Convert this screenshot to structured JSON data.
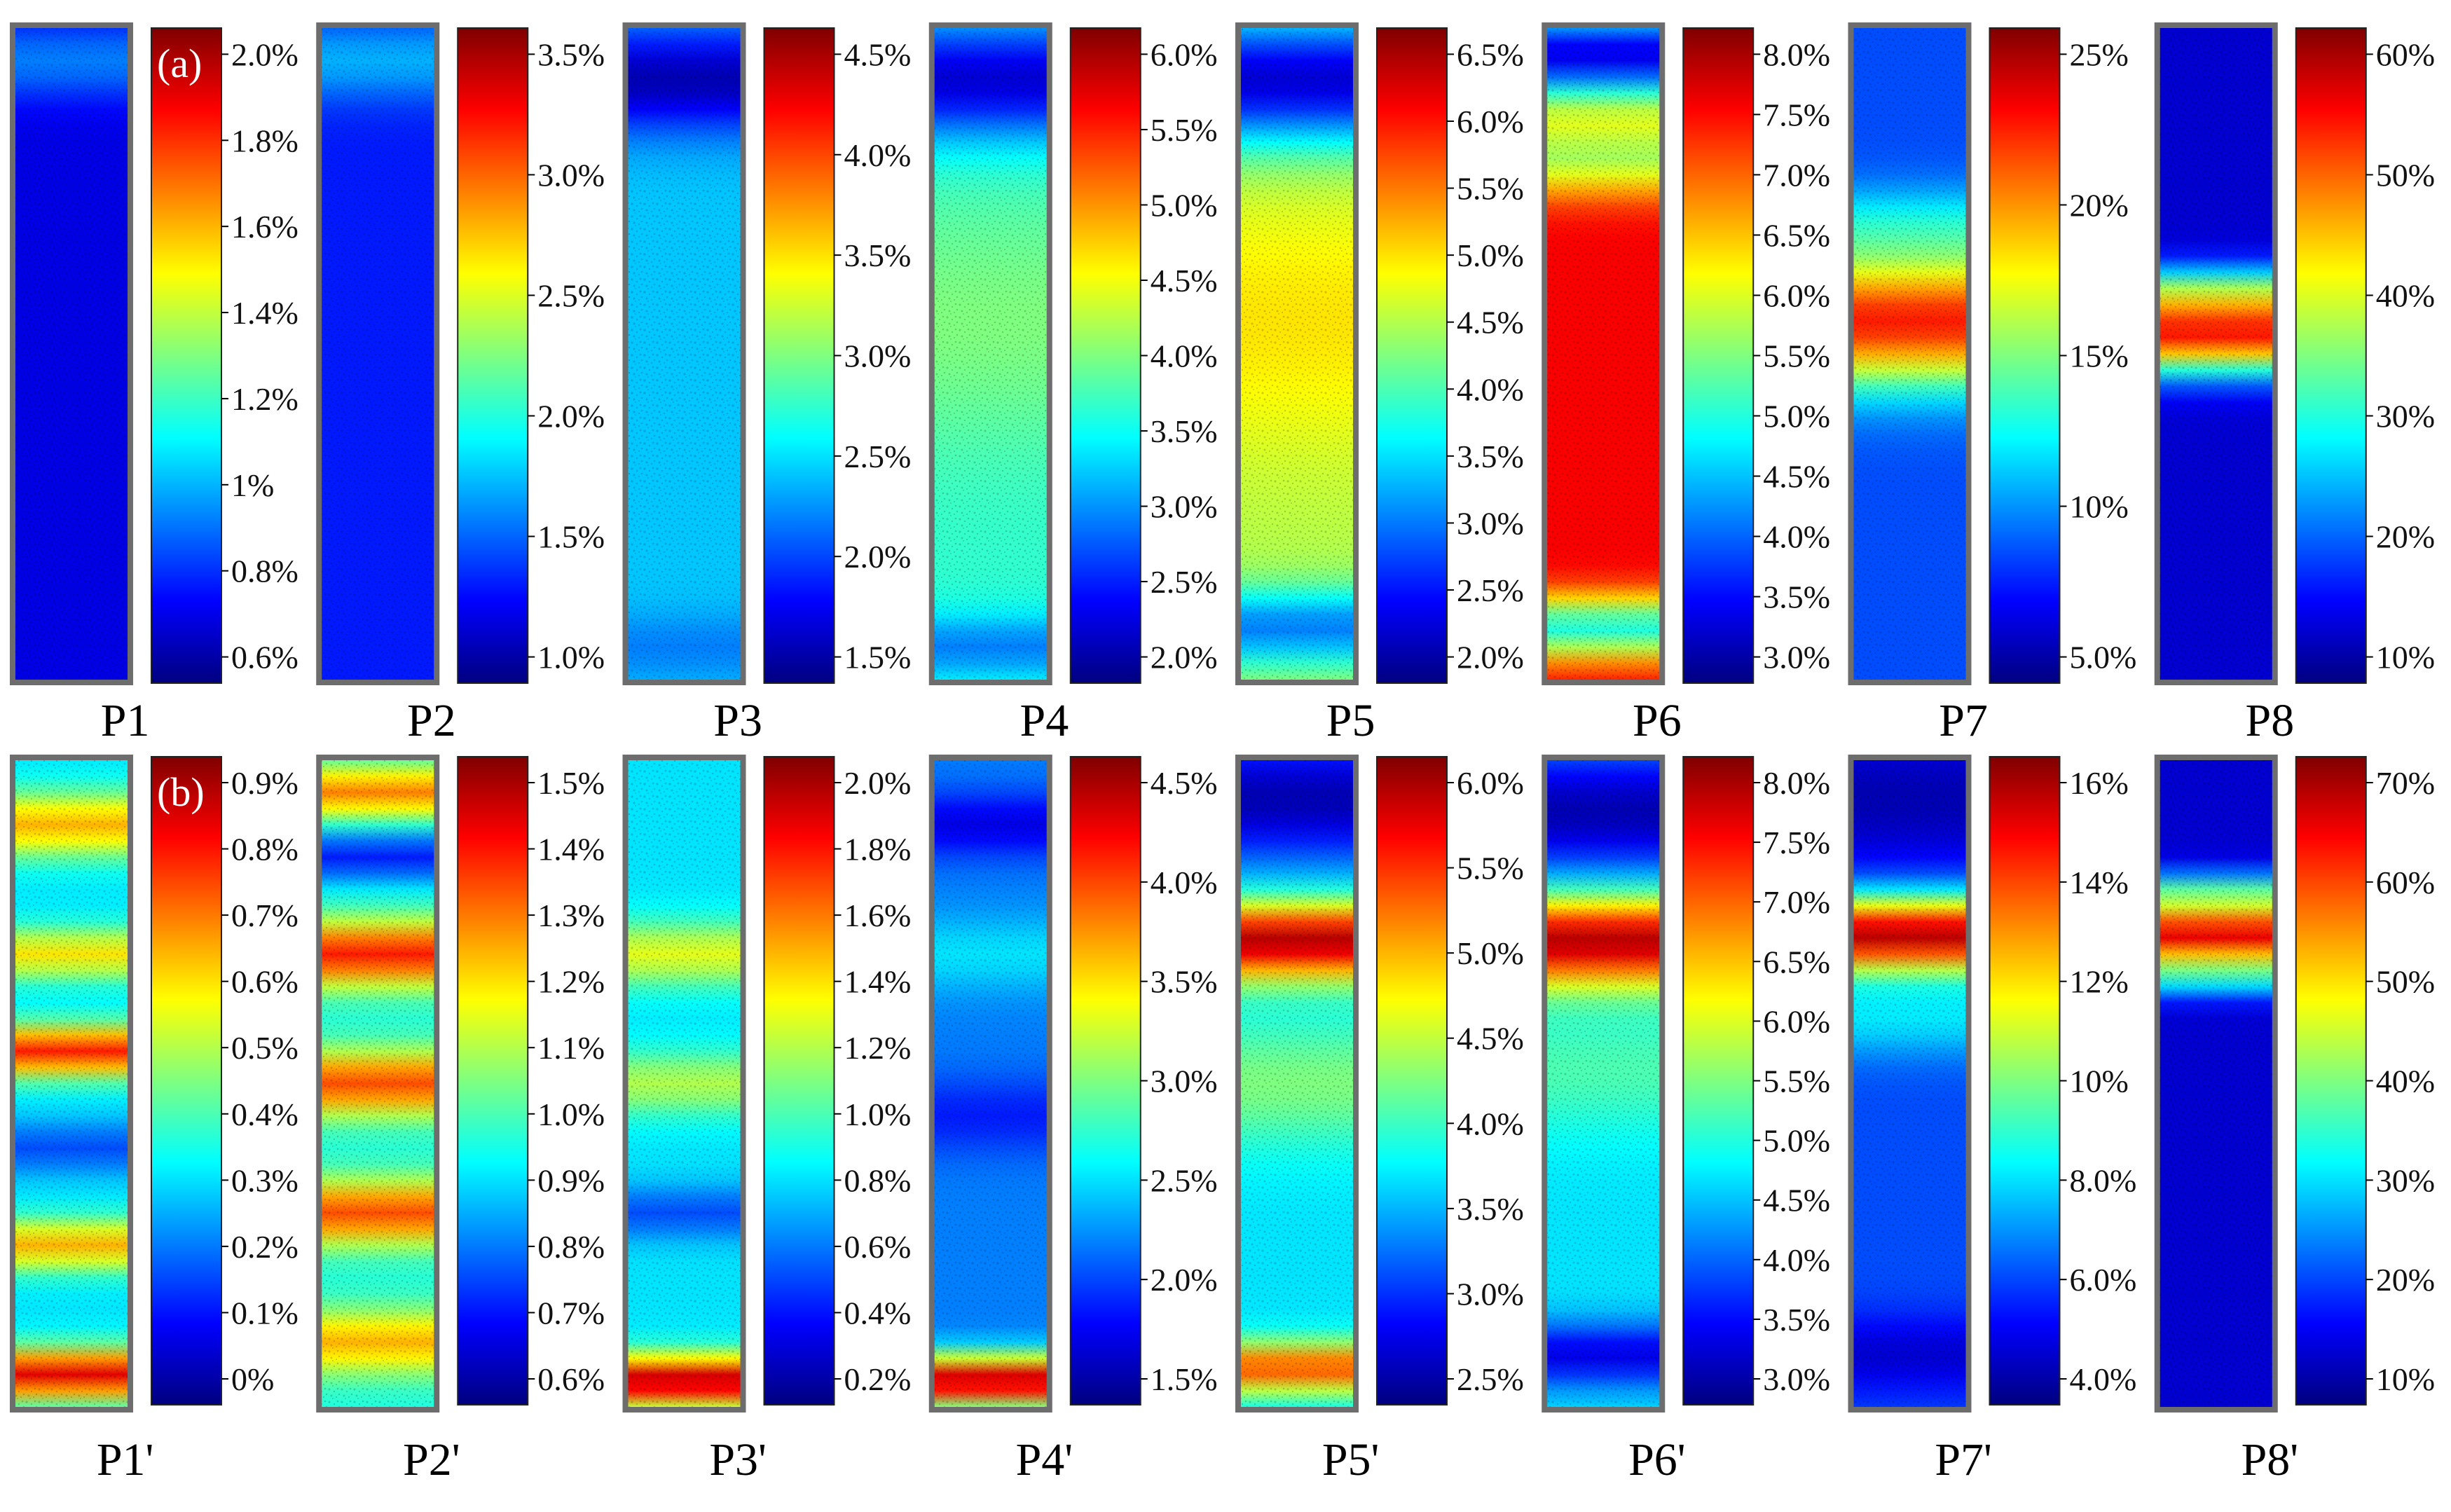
{
  "figure": {
    "rows": [
      {
        "tag": "(a)",
        "panels": [
          {
            "label": "P1",
            "ticks": [
              "2.0%",
              "1.8%",
              "1.6%",
              "1.4%",
              "1.2%",
              "1%",
              "0.8%",
              "0.6%"
            ],
            "field": {
              "base": 0.1,
              "hot": [
                {
                  "at": 0.05,
                  "w": 0.06,
                  "v": 0.25
                }
              ]
            }
          },
          {
            "label": "P2",
            "ticks": [
              "3.5%",
              "3.0%",
              "2.5%",
              "2.0%",
              "1.5%",
              "1.0%"
            ],
            "field": {
              "base": 0.15,
              "hot": [
                {
                  "at": 0.05,
                  "w": 0.06,
                  "v": 0.3
                }
              ]
            }
          },
          {
            "label": "P3",
            "ticks": [
              "4.5%",
              "4.0%",
              "3.5%",
              "3.0%",
              "2.5%",
              "2.0%",
              "1.5%"
            ],
            "field": {
              "base": 0.32,
              "hot": [
                {
                  "at": 0.08,
                  "w": 0.08,
                  "v": 0.05
                },
                {
                  "at": 0.95,
                  "w": 0.05,
                  "v": 0.25
                }
              ]
            }
          },
          {
            "label": "P4",
            "ticks": [
              "6.0%",
              "5.5%",
              "5.0%",
              "4.5%",
              "4.0%",
              "3.5%",
              "3.0%",
              "2.5%",
              "2.0%"
            ],
            "field": {
              "base": 0.42,
              "hot": [
                {
                  "at": 0.08,
                  "w": 0.09,
                  "v": 0.08
                },
                {
                  "at": 0.45,
                  "w": 0.2,
                  "v": 0.5
                },
                {
                  "at": 0.95,
                  "w": 0.05,
                  "v": 0.25
                }
              ]
            }
          },
          {
            "label": "P5",
            "ticks": [
              "6.5%",
              "6.0%",
              "5.5%",
              "5.0%",
              "4.5%",
              "4.0%",
              "3.5%",
              "3.0%",
              "2.5%",
              "2.0%"
            ],
            "field": {
              "base": 0.55,
              "hot": [
                {
                  "at": 0.08,
                  "w": 0.1,
                  "v": 0.08
                },
                {
                  "at": 0.45,
                  "w": 0.2,
                  "v": 0.65
                },
                {
                  "at": 0.92,
                  "w": 0.06,
                  "v": 0.25
                }
              ]
            }
          },
          {
            "label": "P6",
            "ticks": [
              "8.0%",
              "7.5%",
              "7.0%",
              "6.5%",
              "6.0%",
              "5.5%",
              "5.0%",
              "4.5%",
              "4.0%",
              "3.5%",
              "3.0%"
            ],
            "field": {
              "base": 0.88,
              "hot": [
                {
                  "at": 0.04,
                  "w": 0.08,
                  "v": 0.1
                },
                {
                  "at": 0.2,
                  "w": 0.06,
                  "v": 0.55
                },
                {
                  "at": 0.92,
                  "w": 0.05,
                  "v": 0.4
                }
              ]
            }
          },
          {
            "label": "P7",
            "ticks": [
              "25%",
              "20%",
              "15%",
              "10%",
              "5.0%"
            ],
            "field": {
              "base": 0.2,
              "hot": [
                {
                  "at": 0.45,
                  "w": 0.1,
                  "v": 0.85
                },
                {
                  "at": 0.3,
                  "w": 0.06,
                  "v": 0.35
                }
              ]
            }
          },
          {
            "label": "P8",
            "ticks": [
              "60%",
              "50%",
              "40%",
              "30%",
              "20%",
              "10%"
            ],
            "field": {
              "base": 0.08,
              "hot": [
                {
                  "at": 0.47,
                  "w": 0.06,
                  "v": 0.85
                },
                {
                  "at": 0.4,
                  "w": 0.04,
                  "v": 0.35
                }
              ]
            }
          }
        ]
      },
      {
        "tag": "(b)",
        "panels": [
          {
            "label": "P1'",
            "ticks": [
              "0.9%",
              "0.8%",
              "0.7%",
              "0.6%",
              "0.5%",
              "0.4%",
              "0.3%",
              "0.2%",
              "0.1%",
              "0%"
            ],
            "field": {
              "base": 0.35,
              "hot": [
                {
                  "at": 0.1,
                  "w": 0.05,
                  "v": 0.7
                },
                {
                  "at": 0.3,
                  "w": 0.04,
                  "v": 0.65
                },
                {
                  "at": 0.45,
                  "w": 0.04,
                  "v": 0.85
                },
                {
                  "at": 0.6,
                  "w": 0.04,
                  "v": 0.2
                },
                {
                  "at": 0.75,
                  "w": 0.04,
                  "v": 0.7
                },
                {
                  "at": 0.95,
                  "w": 0.04,
                  "v": 0.9
                }
              ]
            }
          },
          {
            "label": "P2'",
            "ticks": [
              "1.5%",
              "1.4%",
              "1.3%",
              "1.2%",
              "1.1%",
              "1.0%",
              "0.9%",
              "0.8%",
              "0.7%",
              "0.6%"
            ],
            "field": {
              "base": 0.4,
              "hot": [
                {
                  "at": 0.05,
                  "w": 0.04,
                  "v": 0.75
                },
                {
                  "at": 0.15,
                  "w": 0.04,
                  "v": 0.15
                },
                {
                  "at": 0.3,
                  "w": 0.05,
                  "v": 0.85
                },
                {
                  "at": 0.5,
                  "w": 0.05,
                  "v": 0.8
                },
                {
                  "at": 0.7,
                  "w": 0.05,
                  "v": 0.8
                },
                {
                  "at": 0.9,
                  "w": 0.05,
                  "v": 0.7
                }
              ]
            }
          },
          {
            "label": "P3'",
            "ticks": [
              "2.0%",
              "1.8%",
              "1.6%",
              "1.4%",
              "1.2%",
              "1.0%",
              "0.8%",
              "0.6%",
              "0.4%",
              "0.2%"
            ],
            "field": {
              "base": 0.35,
              "hot": [
                {
                  "at": 0.3,
                  "w": 0.05,
                  "v": 0.6
                },
                {
                  "at": 0.5,
                  "w": 0.05,
                  "v": 0.55
                },
                {
                  "at": 0.7,
                  "w": 0.04,
                  "v": 0.2
                },
                {
                  "at": 0.96,
                  "w": 0.04,
                  "v": 0.95
                }
              ]
            }
          },
          {
            "label": "P4'",
            "ticks": [
              "4.5%",
              "4.0%",
              "3.5%",
              "3.0%",
              "2.5%",
              "2.0%",
              "1.5%"
            ],
            "field": {
              "base": 0.25,
              "hot": [
                {
                  "at": 0.1,
                  "w": 0.05,
                  "v": 0.1
                },
                {
                  "at": 0.3,
                  "w": 0.06,
                  "v": 0.35
                },
                {
                  "at": 0.55,
                  "w": 0.06,
                  "v": 0.15
                },
                {
                  "at": 0.96,
                  "w": 0.04,
                  "v": 0.95
                }
              ]
            }
          },
          {
            "label": "P5'",
            "ticks": [
              "6.0%",
              "5.5%",
              "5.0%",
              "4.5%",
              "4.0%",
              "3.5%",
              "3.0%",
              "2.5%"
            ],
            "field": {
              "base": 0.35,
              "hot": [
                {
                  "at": 0.06,
                  "w": 0.1,
                  "v": 0.05
                },
                {
                  "at": 0.28,
                  "w": 0.06,
                  "v": 0.95
                },
                {
                  "at": 0.5,
                  "w": 0.1,
                  "v": 0.5
                },
                {
                  "at": 0.94,
                  "w": 0.04,
                  "v": 0.8
                }
              ]
            }
          },
          {
            "label": "P6'",
            "ticks": [
              "8.0%",
              "7.5%",
              "7.0%",
              "6.5%",
              "6.0%",
              "5.5%",
              "5.0%",
              "4.5%",
              "4.0%",
              "3.5%",
              "3.0%"
            ],
            "field": {
              "base": 0.35,
              "hot": [
                {
                  "at": 0.08,
                  "w": 0.1,
                  "v": 0.05
                },
                {
                  "at": 0.28,
                  "w": 0.07,
                  "v": 0.95
                },
                {
                  "at": 0.48,
                  "w": 0.1,
                  "v": 0.45
                },
                {
                  "at": 0.92,
                  "w": 0.05,
                  "v": 0.1
                }
              ]
            }
          },
          {
            "label": "P7'",
            "ticks": [
              "16%",
              "14%",
              "12%",
              "10%",
              "8.0%",
              "6.0%",
              "4.0%"
            ],
            "field": {
              "base": 0.2,
              "hot": [
                {
                  "at": 0.06,
                  "w": 0.12,
                  "v": 0.05
                },
                {
                  "at": 0.27,
                  "w": 0.06,
                  "v": 0.95
                },
                {
                  "at": 0.4,
                  "w": 0.06,
                  "v": 0.35
                },
                {
                  "at": 0.92,
                  "w": 0.06,
                  "v": 0.08
                }
              ]
            }
          },
          {
            "label": "P8'",
            "ticks": [
              "70%",
              "60%",
              "50%",
              "40%",
              "30%",
              "20%",
              "10%"
            ],
            "field": {
              "base": 0.08,
              "hot": [
                {
                  "at": 0.27,
                  "w": 0.05,
                  "v": 0.9
                },
                {
                  "at": 0.2,
                  "w": 0.03,
                  "v": 0.35
                },
                {
                  "at": 0.34,
                  "w": 0.03,
                  "v": 0.3
                }
              ]
            }
          }
        ]
      }
    ],
    "colormap": [
      "#00007f",
      "#0000ff",
      "#007fff",
      "#00ffff",
      "#7fff7f",
      "#ffff00",
      "#ff7f00",
      "#ff0000",
      "#7f0000"
    ],
    "colors": {
      "background": "#ffffff",
      "frame": "#8a8a8a",
      "text": "#000000"
    }
  }
}
